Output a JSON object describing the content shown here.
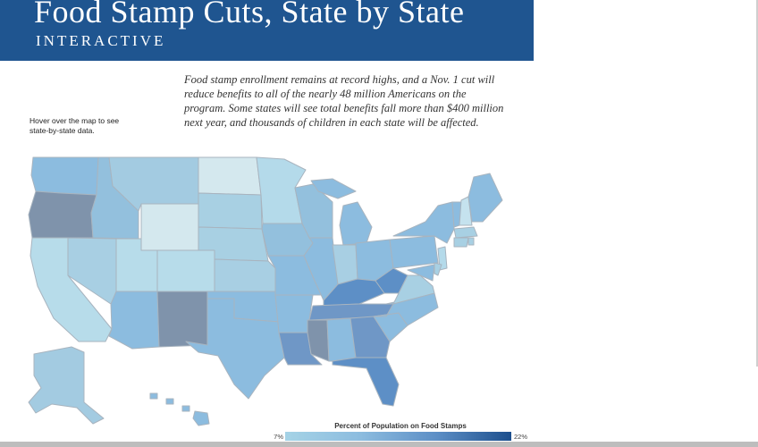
{
  "header": {
    "title": "Food Stamp Cuts, State by State",
    "subtitle": "INTERACTIVE"
  },
  "intro": "Food stamp enrollment remains at record highs, and a Nov. 1 cut will reduce benefits to all of the nearly 48 million Americans on the program. Some states will see total benefits fall more than $400 million next year, and thousands of children in each state will be affected.",
  "hover_hint": "Hover over the map to see state-by-state data.",
  "legend": {
    "title": "Percent of Population on Food Stamps",
    "min_label": "7%",
    "max_label": "22%",
    "colors": [
      "#a5d3e6",
      "#8cbcdf",
      "#5d8fc6",
      "#1d4f8d"
    ]
  }
}
